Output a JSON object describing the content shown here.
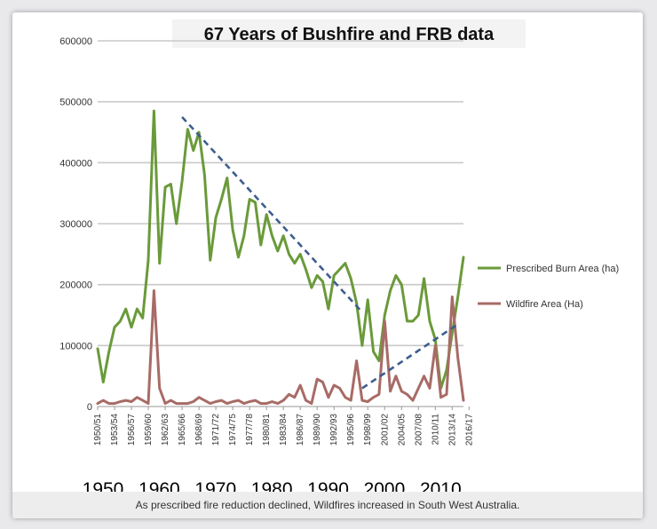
{
  "chart_data": {
    "type": "line",
    "title": "67 Years of Bushfire and FRB data",
    "ylim": [
      0,
      600000
    ],
    "yticks": [
      0,
      100000,
      200000,
      300000,
      400000,
      500000,
      600000
    ],
    "x_tick_labels": [
      "1950/51",
      "1953/54",
      "1956/57",
      "1959/60",
      "1962/63",
      "1965/66",
      "1968/69",
      "1971/72",
      "1974/75",
      "1977/78",
      "1980/81",
      "1983/84",
      "1986/87",
      "1989/90",
      "1992/93",
      "1995/96",
      "1998/99",
      "2001/02",
      "2004/05",
      "2007/08",
      "2010/11",
      "2013/14",
      "2016/17"
    ],
    "decade_labels": [
      "1950",
      "1960",
      "1970",
      "1980",
      "1990",
      "2000",
      "2010"
    ],
    "grid": true,
    "legend_position": "right",
    "series": [
      {
        "name": "Prescribed Burn Area (ha)",
        "color": "#6a9a3a",
        "values": [
          95000,
          40000,
          90000,
          130000,
          140000,
          160000,
          130000,
          160000,
          145000,
          240000,
          485000,
          235000,
          360000,
          365000,
          300000,
          370000,
          455000,
          420000,
          450000,
          380000,
          240000,
          310000,
          340000,
          375000,
          290000,
          245000,
          280000,
          340000,
          335000,
          265000,
          315000,
          280000,
          255000,
          280000,
          250000,
          235000,
          250000,
          225000,
          195000,
          215000,
          205000,
          160000,
          215000,
          225000,
          235000,
          210000,
          170000,
          100000,
          175000,
          90000,
          75000,
          150000,
          190000,
          215000,
          200000,
          140000,
          140000,
          150000,
          210000,
          140000,
          110000,
          30000,
          60000,
          120000,
          180000,
          245000
        ]
      },
      {
        "name": "Wildfire Area (Ha)",
        "color": "#a86b66",
        "values": [
          5000,
          10000,
          5000,
          5000,
          8000,
          10000,
          8000,
          15000,
          10000,
          5000,
          190000,
          30000,
          5000,
          10000,
          5000,
          5000,
          5000,
          8000,
          15000,
          10000,
          5000,
          8000,
          10000,
          5000,
          8000,
          10000,
          5000,
          8000,
          10000,
          5000,
          5000,
          8000,
          5000,
          10000,
          20000,
          15000,
          35000,
          10000,
          5000,
          45000,
          40000,
          15000,
          35000,
          30000,
          15000,
          10000,
          75000,
          10000,
          8000,
          15000,
          20000,
          140000,
          25000,
          50000,
          25000,
          20000,
          10000,
          30000,
          50000,
          30000,
          100000,
          15000,
          20000,
          180000,
          80000,
          10000
        ]
      }
    ],
    "trend_lines": [
      {
        "name": "declining prescribed burn trend",
        "start": [
          1965,
          475000
        ],
        "end": [
          1997,
          155000
        ]
      },
      {
        "name": "increasing wildfire trend",
        "start": [
          1997,
          30000
        ],
        "end": [
          2014,
          135000
        ]
      }
    ]
  },
  "caption": "As prescribed fire reduction declined, Wildfires increased in South West Australia."
}
